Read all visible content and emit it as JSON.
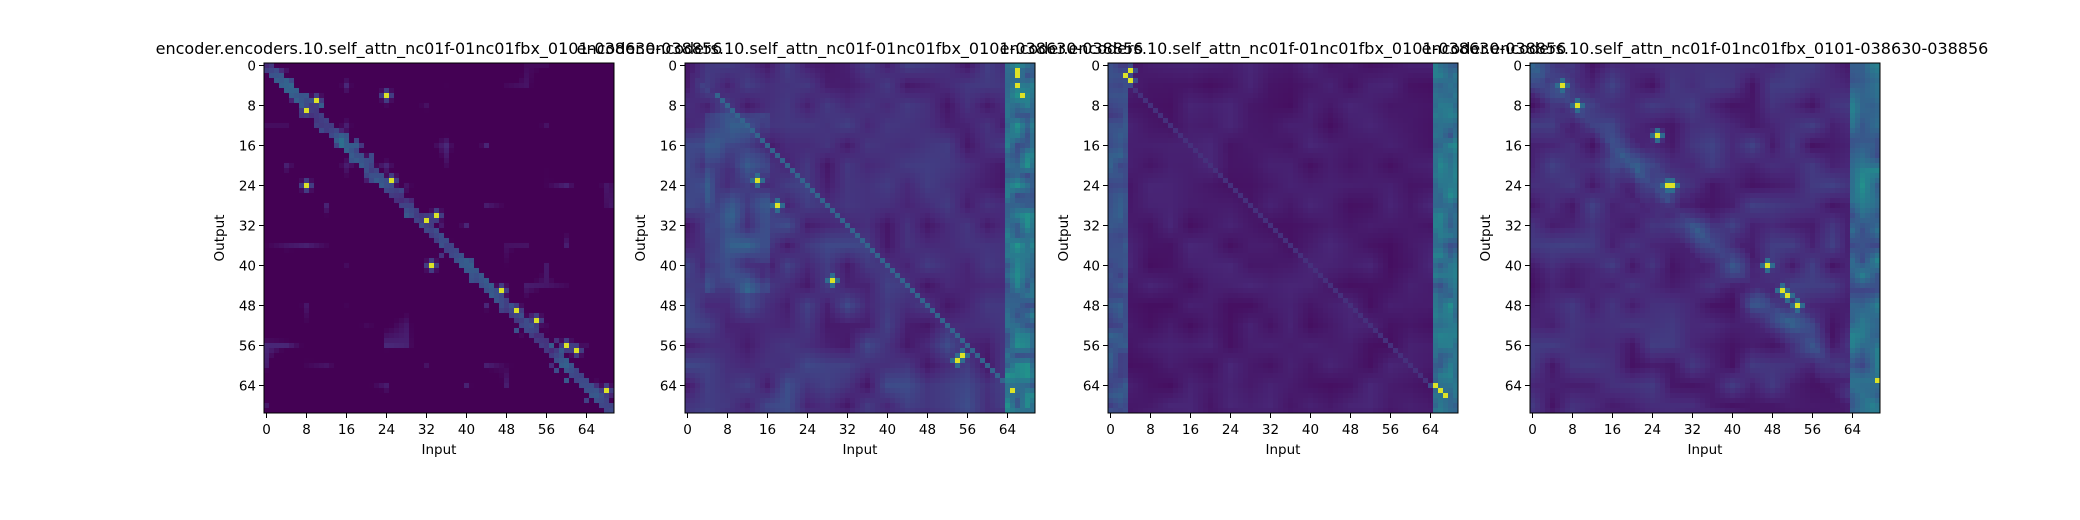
{
  "chart_data": [
    {
      "type": "heatmap",
      "title": "encoder.encoders.10.self_attn_nc01f-01nc01fbx_0101-038630-038856",
      "xlabel": "Input",
      "ylabel": "Output",
      "xticks": [
        "0",
        "8",
        "16",
        "24",
        "32",
        "40",
        "48",
        "56",
        "64"
      ],
      "yticks": [
        "0",
        "8",
        "16",
        "24",
        "32",
        "40",
        "48",
        "56",
        "64"
      ],
      "xlim": [
        0,
        70
      ],
      "ylim": [
        0,
        70
      ],
      "colormap": "viridis",
      "pattern": "sparse-diagonal",
      "hotspots": [
        [
          8,
          9
        ],
        [
          10,
          7
        ],
        [
          24,
          6
        ],
        [
          8,
          24
        ],
        [
          25,
          23
        ],
        [
          32,
          31
        ],
        [
          34,
          30
        ],
        [
          33,
          40
        ],
        [
          47,
          45
        ],
        [
          50,
          49
        ],
        [
          54,
          51
        ],
        [
          60,
          56
        ],
        [
          62,
          57
        ],
        [
          68,
          65
        ]
      ]
    },
    {
      "type": "heatmap",
      "title": "encoder.encoders.10.self_attn_nc01f-01nc01fbx_0101-038630-038856",
      "xlabel": "Input",
      "ylabel": "Output",
      "xticks": [
        "0",
        "8",
        "16",
        "24",
        "32",
        "40",
        "48",
        "56",
        "64"
      ],
      "yticks": [
        "0",
        "8",
        "16",
        "24",
        "32",
        "40",
        "48",
        "56",
        "64"
      ],
      "xlim": [
        0,
        70
      ],
      "ylim": [
        0,
        70
      ],
      "colormap": "viridis",
      "pattern": "diagonal-line-with-right-column",
      "hotspots": [
        [
          66,
          2
        ],
        [
          66,
          4
        ],
        [
          67,
          6
        ],
        [
          66,
          1
        ],
        [
          55,
          58
        ],
        [
          54,
          59
        ],
        [
          65,
          65
        ],
        [
          29,
          43
        ],
        [
          14,
          23
        ],
        [
          18,
          28
        ]
      ]
    },
    {
      "type": "heatmap",
      "title": "encoder.encoders.10.self_attn_nc01f-01nc01fbx_0101-038630-038856",
      "xlabel": "Input",
      "ylabel": "Output",
      "xticks": [
        "0",
        "8",
        "16",
        "24",
        "32",
        "40",
        "48",
        "56",
        "64"
      ],
      "yticks": [
        "0",
        "8",
        "16",
        "24",
        "32",
        "40",
        "48",
        "56",
        "64"
      ],
      "xlim": [
        0,
        70
      ],
      "ylim": [
        0,
        70
      ],
      "colormap": "viridis",
      "pattern": "faint-diagonal-with-edge-columns",
      "hotspots": [
        [
          4,
          1
        ],
        [
          3,
          2
        ],
        [
          4,
          3
        ],
        [
          65,
          64
        ],
        [
          66,
          65
        ],
        [
          67,
          66
        ]
      ]
    },
    {
      "type": "heatmap",
      "title": "encoder.encoders.10.self_attn_nc01f-01nc01fbx_0101-038630-038856",
      "xlabel": "Input",
      "ylabel": "Output",
      "xticks": [
        "0",
        "8",
        "16",
        "24",
        "32",
        "40",
        "48",
        "56",
        "64"
      ],
      "yticks": [
        "0",
        "8",
        "16",
        "24",
        "32",
        "40",
        "48",
        "56",
        "64"
      ],
      "xlim": [
        0,
        70
      ],
      "ylim": [
        0,
        70
      ],
      "colormap": "viridis",
      "pattern": "broad-diagonal",
      "hotspots": [
        [
          6,
          4
        ],
        [
          9,
          8
        ],
        [
          27,
          24
        ],
        [
          28,
          24
        ],
        [
          50,
          45
        ],
        [
          51,
          46
        ],
        [
          53,
          48
        ],
        [
          47,
          40
        ],
        [
          69,
          63
        ],
        [
          25,
          14
        ]
      ]
    }
  ]
}
